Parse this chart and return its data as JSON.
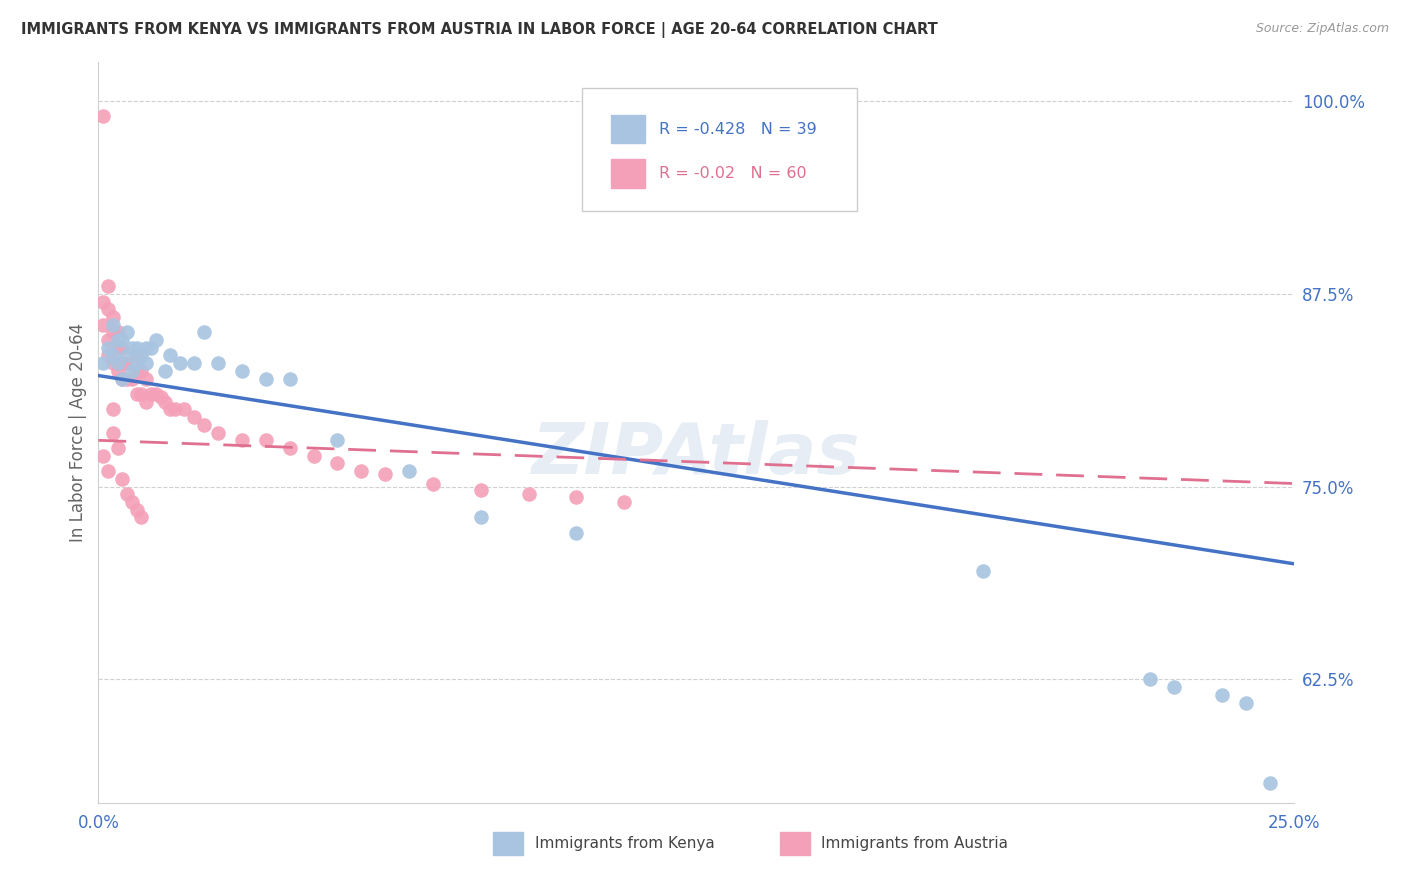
{
  "title": "IMMIGRANTS FROM KENYA VS IMMIGRANTS FROM AUSTRIA IN LABOR FORCE | AGE 20-64 CORRELATION CHART",
  "source": "Source: ZipAtlas.com",
  "ylabel": "In Labor Force | Age 20-64",
  "legend_kenya": "Immigrants from Kenya",
  "legend_austria": "Immigrants from Austria",
  "R_kenya": -0.428,
  "N_kenya": 39,
  "R_austria": -0.02,
  "N_austria": 60,
  "color_kenya": "#a8c4e0",
  "color_austria": "#f4a0b8",
  "trendline_kenya_color": "#4472c4",
  "trendline_austria_color": "#e07090",
  "axis_color": "#4472c4",
  "text_color": "#333333",
  "source_color": "#999999",
  "grid_color": "#d0d0d0",
  "xlim": [
    0.0,
    0.25
  ],
  "ylim": [
    0.545,
    1.025
  ],
  "xticks": [
    0.0,
    0.05,
    0.1,
    0.15,
    0.2,
    0.25
  ],
  "xtick_labels": [
    "0.0%",
    "",
    "",
    "",
    "",
    "25.0%"
  ],
  "yticks_right": [
    0.625,
    0.75,
    0.875,
    1.0
  ],
  "ytick_labels_right": [
    "62.5%",
    "75.0%",
    "87.5%",
    "100.0%"
  ],
  "kenya_trendline_y0": 0.822,
  "kenya_trendline_y1": 0.7,
  "austria_trendline_y0": 0.78,
  "austria_trendline_y1": 0.752,
  "kenya_x": [
    0.001,
    0.002,
    0.003,
    0.003,
    0.004,
    0.004,
    0.005,
    0.005,
    0.006,
    0.006,
    0.007,
    0.007,
    0.008,
    0.008,
    0.009,
    0.01,
    0.01,
    0.011,
    0.012,
    0.014,
    0.015,
    0.017,
    0.02,
    0.022,
    0.025,
    0.03,
    0.035,
    0.04,
    0.05,
    0.065,
    0.08,
    0.1,
    0.115,
    0.185,
    0.22,
    0.225,
    0.235,
    0.24,
    0.245
  ],
  "kenya_y": [
    0.83,
    0.84,
    0.855,
    0.835,
    0.845,
    0.83,
    0.845,
    0.82,
    0.85,
    0.835,
    0.84,
    0.825,
    0.84,
    0.83,
    0.835,
    0.84,
    0.83,
    0.84,
    0.845,
    0.825,
    0.835,
    0.83,
    0.83,
    0.85,
    0.83,
    0.825,
    0.82,
    0.82,
    0.78,
    0.76,
    0.73,
    0.72,
    0.94,
    0.695,
    0.625,
    0.62,
    0.615,
    0.61,
    0.558
  ],
  "austria_x": [
    0.001,
    0.001,
    0.001,
    0.002,
    0.002,
    0.002,
    0.002,
    0.003,
    0.003,
    0.003,
    0.003,
    0.004,
    0.004,
    0.004,
    0.005,
    0.005,
    0.005,
    0.006,
    0.006,
    0.007,
    0.007,
    0.008,
    0.008,
    0.008,
    0.009,
    0.009,
    0.01,
    0.01,
    0.011,
    0.012,
    0.013,
    0.014,
    0.015,
    0.016,
    0.018,
    0.02,
    0.022,
    0.025,
    0.03,
    0.035,
    0.04,
    0.045,
    0.05,
    0.055,
    0.06,
    0.07,
    0.08,
    0.09,
    0.1,
    0.11,
    0.001,
    0.002,
    0.003,
    0.003,
    0.004,
    0.005,
    0.006,
    0.007,
    0.008,
    0.009
  ],
  "austria_y": [
    0.99,
    0.87,
    0.855,
    0.88,
    0.865,
    0.845,
    0.835,
    0.86,
    0.85,
    0.84,
    0.83,
    0.85,
    0.84,
    0.825,
    0.84,
    0.83,
    0.82,
    0.83,
    0.82,
    0.83,
    0.82,
    0.835,
    0.825,
    0.81,
    0.825,
    0.81,
    0.82,
    0.805,
    0.81,
    0.81,
    0.808,
    0.805,
    0.8,
    0.8,
    0.8,
    0.795,
    0.79,
    0.785,
    0.78,
    0.78,
    0.775,
    0.77,
    0.765,
    0.76,
    0.758,
    0.752,
    0.748,
    0.745,
    0.743,
    0.74,
    0.77,
    0.76,
    0.8,
    0.785,
    0.775,
    0.755,
    0.745,
    0.74,
    0.735,
    0.73
  ]
}
